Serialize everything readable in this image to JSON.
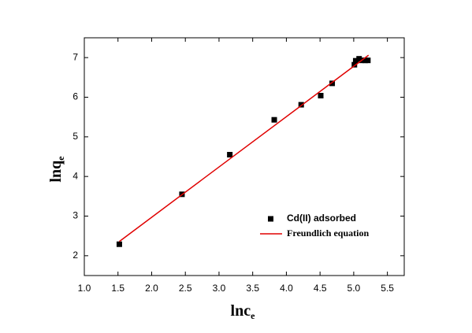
{
  "chart_data": {
    "type": "scatter",
    "xlabel": "lnc",
    "xlabel_sub": "e",
    "ylabel": "lnq",
    "ylabel_sub": "e",
    "xlim": [
      1.0,
      5.75
    ],
    "xticks": [
      {
        "value": 1.0,
        "label": "1.0"
      },
      {
        "value": 1.5,
        "label": "1.5"
      },
      {
        "value": 2.0,
        "label": "2.0"
      },
      {
        "value": 2.5,
        "label": "2.5"
      },
      {
        "value": 3.0,
        "label": "3.0"
      },
      {
        "value": 3.5,
        "label": "3.5"
      },
      {
        "value": 4.0,
        "label": "4.0"
      },
      {
        "value": 4.5,
        "label": "4.5"
      },
      {
        "value": 5.0,
        "label": "5.0"
      },
      {
        "value": 5.5,
        "label": "5.5"
      }
    ],
    "ylim": [
      1.5,
      7.5
    ],
    "yticks": [
      2,
      3,
      4,
      5,
      6,
      7
    ],
    "legend": "lower-right",
    "series": [
      {
        "name": "Cd(II) adsorbed",
        "kind": "scatter",
        "color": "#000000",
        "x": [
          1.52,
          2.45,
          3.16,
          3.82,
          4.22,
          4.51,
          4.68,
          5.01,
          5.03,
          5.08,
          5.12,
          5.17,
          5.21
        ],
        "values": [
          2.29,
          3.55,
          4.55,
          5.43,
          5.81,
          6.04,
          6.35,
          6.82,
          6.92,
          6.97,
          6.93,
          6.93,
          6.93
        ]
      },
      {
        "name": "Freundlich equation",
        "kind": "line",
        "color": "#e00000",
        "x": [
          1.52,
          5.22
        ],
        "values": [
          2.36,
          7.06
        ]
      }
    ]
  }
}
